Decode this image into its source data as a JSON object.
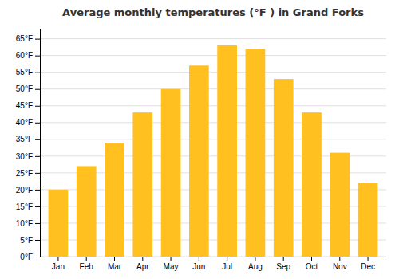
{
  "chart_data": {
    "type": "bar",
    "title": "Average monthly temperatures (°F ) in Grand Forks",
    "categories": [
      "Jan",
      "Feb",
      "Mar",
      "Apr",
      "May",
      "Jun",
      "Jul",
      "Aug",
      "Sep",
      "Oct",
      "Nov",
      "Dec"
    ],
    "values": [
      20,
      27,
      34,
      43,
      50,
      57,
      63,
      62,
      53,
      43,
      31,
      22
    ],
    "color": "#FFC020",
    "ylim": [
      0,
      68
    ],
    "yticks": [
      {
        "value": 0,
        "label": "0°F"
      },
      {
        "value": 5,
        "label": "5°F"
      },
      {
        "value": 10,
        "label": "10°F"
      },
      {
        "value": 15,
        "label": "15°F"
      },
      {
        "value": 20,
        "label": "20°F"
      },
      {
        "value": 25,
        "label": "25°F"
      },
      {
        "value": 30,
        "label": "30°F"
      },
      {
        "value": 35,
        "label": "35°F"
      },
      {
        "value": 40,
        "label": "40°F"
      },
      {
        "value": 45,
        "label": "45°F"
      },
      {
        "value": 50,
        "label": "50°F"
      },
      {
        "value": 55,
        "label": "55°F"
      },
      {
        "value": 60,
        "label": "60°F"
      },
      {
        "value": 65,
        "label": "65°F"
      }
    ],
    "grid": true
  }
}
